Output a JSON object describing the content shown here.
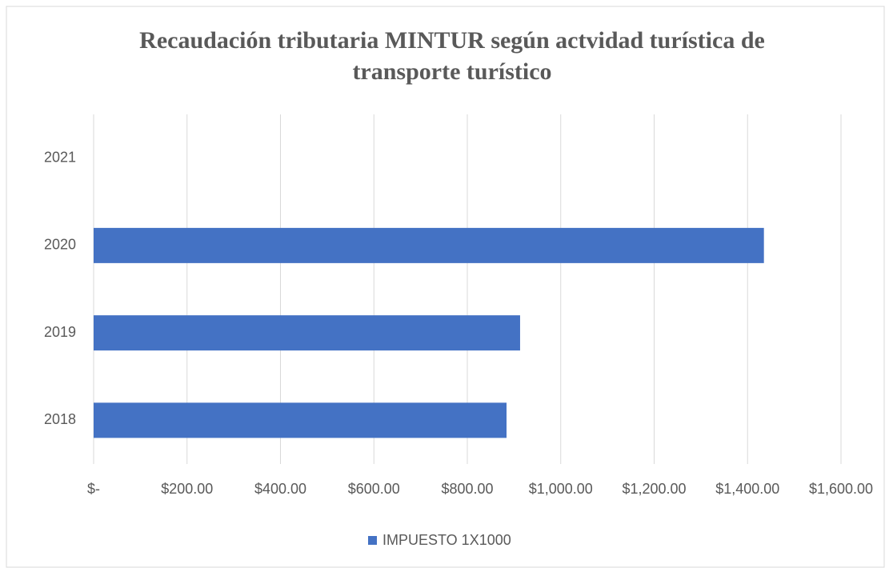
{
  "chart_data": {
    "type": "bar",
    "orientation": "horizontal",
    "title": [
      "Recaudación tributaria MINTUR según actvidad turística de",
      "transporte turístico"
    ],
    "categories": [
      "2018",
      "2019",
      "2020",
      "2021"
    ],
    "series": [
      {
        "name": "IMPUESTO 1X1000",
        "color": "#4472c4",
        "values": [
          884,
          913,
          1435,
          0
        ]
      }
    ],
    "xlim": [
      0,
      1600
    ],
    "xticks": [
      {
        "value": 0,
        "label": "$-"
      },
      {
        "value": 200,
        "label": "$200.00"
      },
      {
        "value": 400,
        "label": "$400.00"
      },
      {
        "value": 600,
        "label": "$600.00"
      },
      {
        "value": 800,
        "label": "$800.00"
      },
      {
        "value": 1000,
        "label": "$1,000.00"
      },
      {
        "value": 1200,
        "label": "$1,200.00"
      },
      {
        "value": 1400,
        "label": "$1,400.00"
      },
      {
        "value": 1600,
        "label": "$1,600.00"
      }
    ],
    "grid": true,
    "legend": "bottom"
  }
}
